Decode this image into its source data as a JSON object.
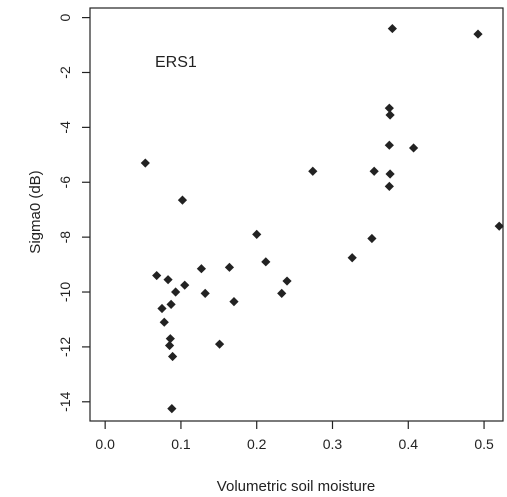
{
  "chart_data": {
    "type": "scatter",
    "title": "",
    "xlabel": "Volumetric soil moisture",
    "ylabel": "Sigma0 (dB)",
    "annotation": "ERS1",
    "xlim": [
      -0.02,
      0.525
    ],
    "ylim": [
      -14.7,
      0.35
    ],
    "x_ticks": [
      0.0,
      0.1,
      0.2,
      0.3,
      0.4,
      0.5
    ],
    "x_tick_labels": [
      "0.0",
      "0.1",
      "0.2",
      "0.3",
      "0.4",
      "0.5"
    ],
    "y_ticks": [
      0,
      -2,
      -4,
      -6,
      -8,
      -10,
      -12,
      -14
    ],
    "y_tick_labels": [
      "0",
      "-2",
      "-4",
      "-6",
      "-8",
      "-10",
      "-12",
      "-14"
    ],
    "grid": false,
    "marker": "diamond",
    "marker_color": "#222222",
    "points": [
      {
        "x": 0.053,
        "y": -5.3
      },
      {
        "x": 0.068,
        "y": -9.4
      },
      {
        "x": 0.075,
        "y": -10.6
      },
      {
        "x": 0.078,
        "y": -11.1
      },
      {
        "x": 0.083,
        "y": -9.55
      },
      {
        "x": 0.085,
        "y": -11.95
      },
      {
        "x": 0.086,
        "y": -11.7
      },
      {
        "x": 0.087,
        "y": -10.45
      },
      {
        "x": 0.088,
        "y": -14.25
      },
      {
        "x": 0.089,
        "y": -12.35
      },
      {
        "x": 0.093,
        "y": -10.0
      },
      {
        "x": 0.102,
        "y": -6.65
      },
      {
        "x": 0.105,
        "y": -9.75
      },
      {
        "x": 0.127,
        "y": -9.15
      },
      {
        "x": 0.132,
        "y": -10.05
      },
      {
        "x": 0.151,
        "y": -11.9
      },
      {
        "x": 0.164,
        "y": -9.1
      },
      {
        "x": 0.17,
        "y": -10.35
      },
      {
        "x": 0.2,
        "y": -7.9
      },
      {
        "x": 0.212,
        "y": -8.9
      },
      {
        "x": 0.233,
        "y": -10.05
      },
      {
        "x": 0.24,
        "y": -9.6
      },
      {
        "x": 0.274,
        "y": -5.6
      },
      {
        "x": 0.326,
        "y": -8.75
      },
      {
        "x": 0.352,
        "y": -8.05
      },
      {
        "x": 0.355,
        "y": -5.6
      },
      {
        "x": 0.375,
        "y": -3.3
      },
      {
        "x": 0.376,
        "y": -3.55
      },
      {
        "x": 0.375,
        "y": -4.65
      },
      {
        "x": 0.376,
        "y": -5.7
      },
      {
        "x": 0.375,
        "y": -6.15
      },
      {
        "x": 0.379,
        "y": -0.4
      },
      {
        "x": 0.407,
        "y": -4.75
      },
      {
        "x": 0.492,
        "y": -0.6
      },
      {
        "x": 0.52,
        "y": -7.6
      }
    ]
  }
}
